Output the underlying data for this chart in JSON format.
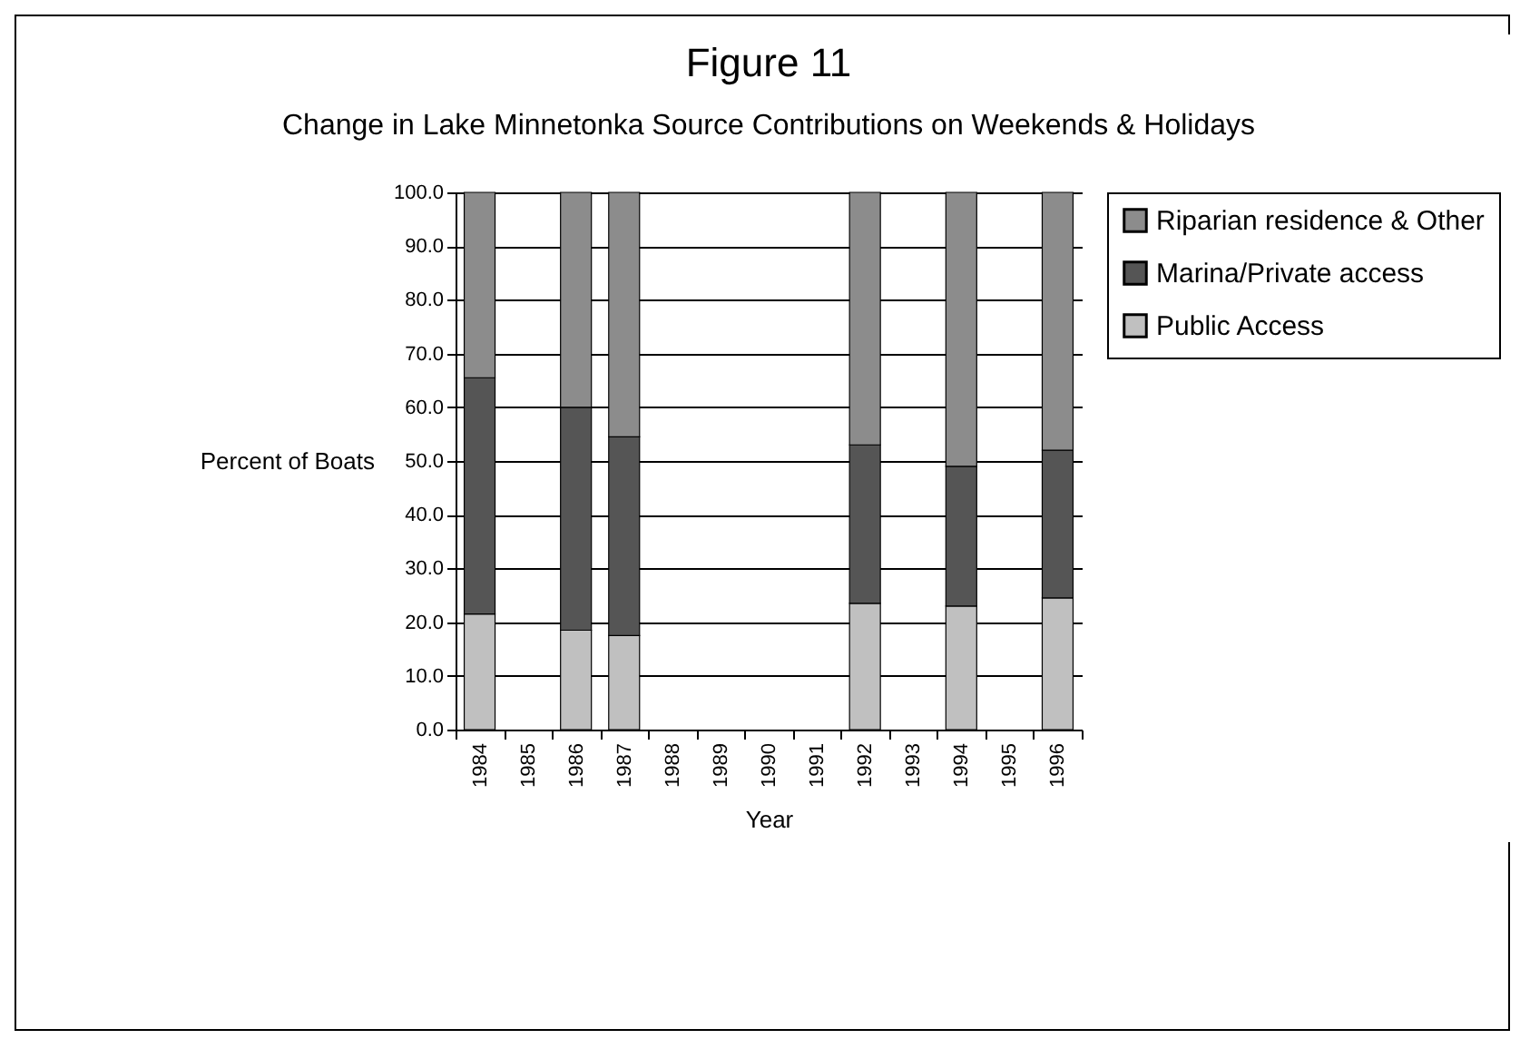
{
  "chart_data": {
    "type": "bar",
    "title": "Figure 11",
    "subtitle": "Change in Lake Minnetonka Source Contributions on Weekends & Holidays",
    "xlabel": "Year",
    "ylabel": "Percent of Boats",
    "categories": [
      "1984",
      "1985",
      "1986",
      "1987",
      "1988",
      "1989",
      "1990",
      "1991",
      "1992",
      "1993",
      "1994",
      "1995",
      "1996"
    ],
    "stacked": true,
    "series": [
      {
        "name": "Public Access",
        "color": "#c0c0c0",
        "values": [
          21.5,
          null,
          18.5,
          17.5,
          null,
          null,
          null,
          null,
          23.5,
          null,
          23,
          null,
          24.5
        ]
      },
      {
        "name": "Marina/Private access",
        "color": "#555555",
        "values": [
          44,
          null,
          41.5,
          37,
          null,
          null,
          null,
          null,
          29.5,
          null,
          26,
          null,
          27.5
        ]
      },
      {
        "name": "Riparian residence & Other",
        "color": "#8c8c8c",
        "values": [
          34.5,
          null,
          40,
          45.5,
          null,
          null,
          null,
          null,
          47,
          null,
          51,
          null,
          48
        ]
      }
    ],
    "ylim": [
      0,
      100
    ],
    "yticks": [
      {
        "value": 0,
        "label": "0.0"
      },
      {
        "value": 10,
        "label": "10.0"
      },
      {
        "value": 20,
        "label": "20.0"
      },
      {
        "value": 30,
        "label": "30.0"
      },
      {
        "value": 40,
        "label": "40.0"
      },
      {
        "value": 50,
        "label": "50.0"
      },
      {
        "value": 60,
        "label": "60.0"
      },
      {
        "value": 70,
        "label": "70.0"
      },
      {
        "value": 80,
        "label": "80.0"
      },
      {
        "value": 90,
        "label": "90.0"
      },
      {
        "value": 100,
        "label": "100.0"
      }
    ],
    "grid": "y",
    "legend": "right"
  }
}
